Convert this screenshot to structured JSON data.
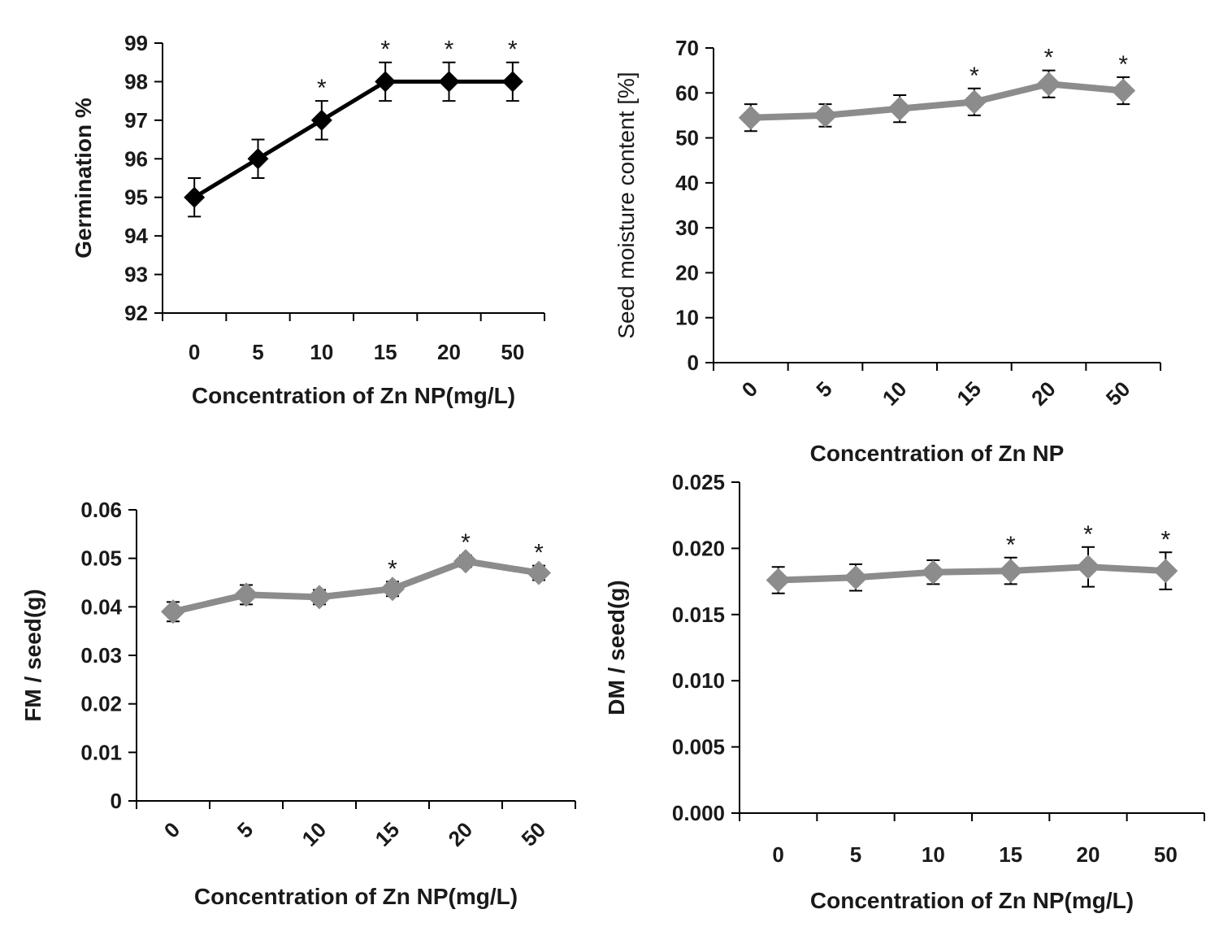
{
  "chart_data": [
    {
      "type": "line",
      "categories": [
        "0",
        "5",
        "10",
        "15",
        "20",
        "50"
      ],
      "values": [
        95,
        96,
        97,
        98,
        98,
        98
      ],
      "error": [
        0.5,
        0.5,
        0.5,
        0.5,
        0.5,
        0.5
      ],
      "significant": [
        false,
        false,
        true,
        true,
        true,
        true
      ],
      "marker_text": "*",
      "xlabel": "Concentration of Zn NP(mg/L)",
      "ylabel": "Germination %",
      "ylim": [
        92,
        99
      ],
      "yticks": [
        "92",
        "93",
        "94",
        "95",
        "96",
        "97",
        "98",
        "99"
      ],
      "grid": false,
      "color": "#000000"
    },
    {
      "type": "line",
      "categories": [
        "0",
        "5",
        "10",
        "15",
        "20",
        "50"
      ],
      "values": [
        54.5,
        55,
        56.5,
        58,
        62,
        60.5
      ],
      "error": [
        3,
        2.5,
        3,
        3,
        3,
        3
      ],
      "significant": [
        false,
        false,
        false,
        true,
        true,
        true
      ],
      "marker_text": "*",
      "xlabel": "Concentration of Zn NP",
      "ylabel": "Seed moisture content [%]",
      "ylim": [
        0,
        70
      ],
      "yticks": [
        "0",
        "10",
        "20",
        "30",
        "40",
        "50",
        "60",
        "70"
      ],
      "grid": false,
      "color": "#8c8c8c"
    },
    {
      "type": "line",
      "categories": [
        "0",
        "5",
        "10",
        "15",
        "20",
        "50"
      ],
      "values": [
        0.039,
        0.0425,
        0.042,
        0.0437,
        0.0494,
        0.047
      ],
      "error": [
        0.002,
        0.002,
        0.0015,
        0.0015,
        0.0012,
        0.0015
      ],
      "significant": [
        false,
        false,
        false,
        true,
        true,
        true
      ],
      "marker_text": "*",
      "xlabel": "Concentration of Zn NP(mg/L)",
      "ylabel": "FM / seed(g)",
      "ylim": [
        0,
        0.06
      ],
      "yticks": [
        "0",
        "0.01",
        "0.02",
        "0.03",
        "0.04",
        "0.05",
        "0.06"
      ],
      "grid": false,
      "color": "#8c8c8c"
    },
    {
      "type": "line",
      "categories": [
        "0",
        "5",
        "10",
        "15",
        "20",
        "50"
      ],
      "values": [
        0.0176,
        0.0178,
        0.0182,
        0.0183,
        0.0186,
        0.0183
      ],
      "error": [
        0.001,
        0.001,
        0.0009,
        0.001,
        0.0015,
        0.0014
      ],
      "significant": [
        false,
        false,
        false,
        true,
        true,
        true
      ],
      "marker_text": "*",
      "xlabel": "Concentration of Zn NP(mg/L)",
      "ylabel": "DM / seed(g)",
      "ylim": [
        0,
        0.025
      ],
      "yticks": [
        "0.000",
        "0.005",
        "0.010",
        "0.015",
        "0.020",
        "0.025"
      ],
      "grid": false,
      "color": "#8c8c8c"
    }
  ]
}
